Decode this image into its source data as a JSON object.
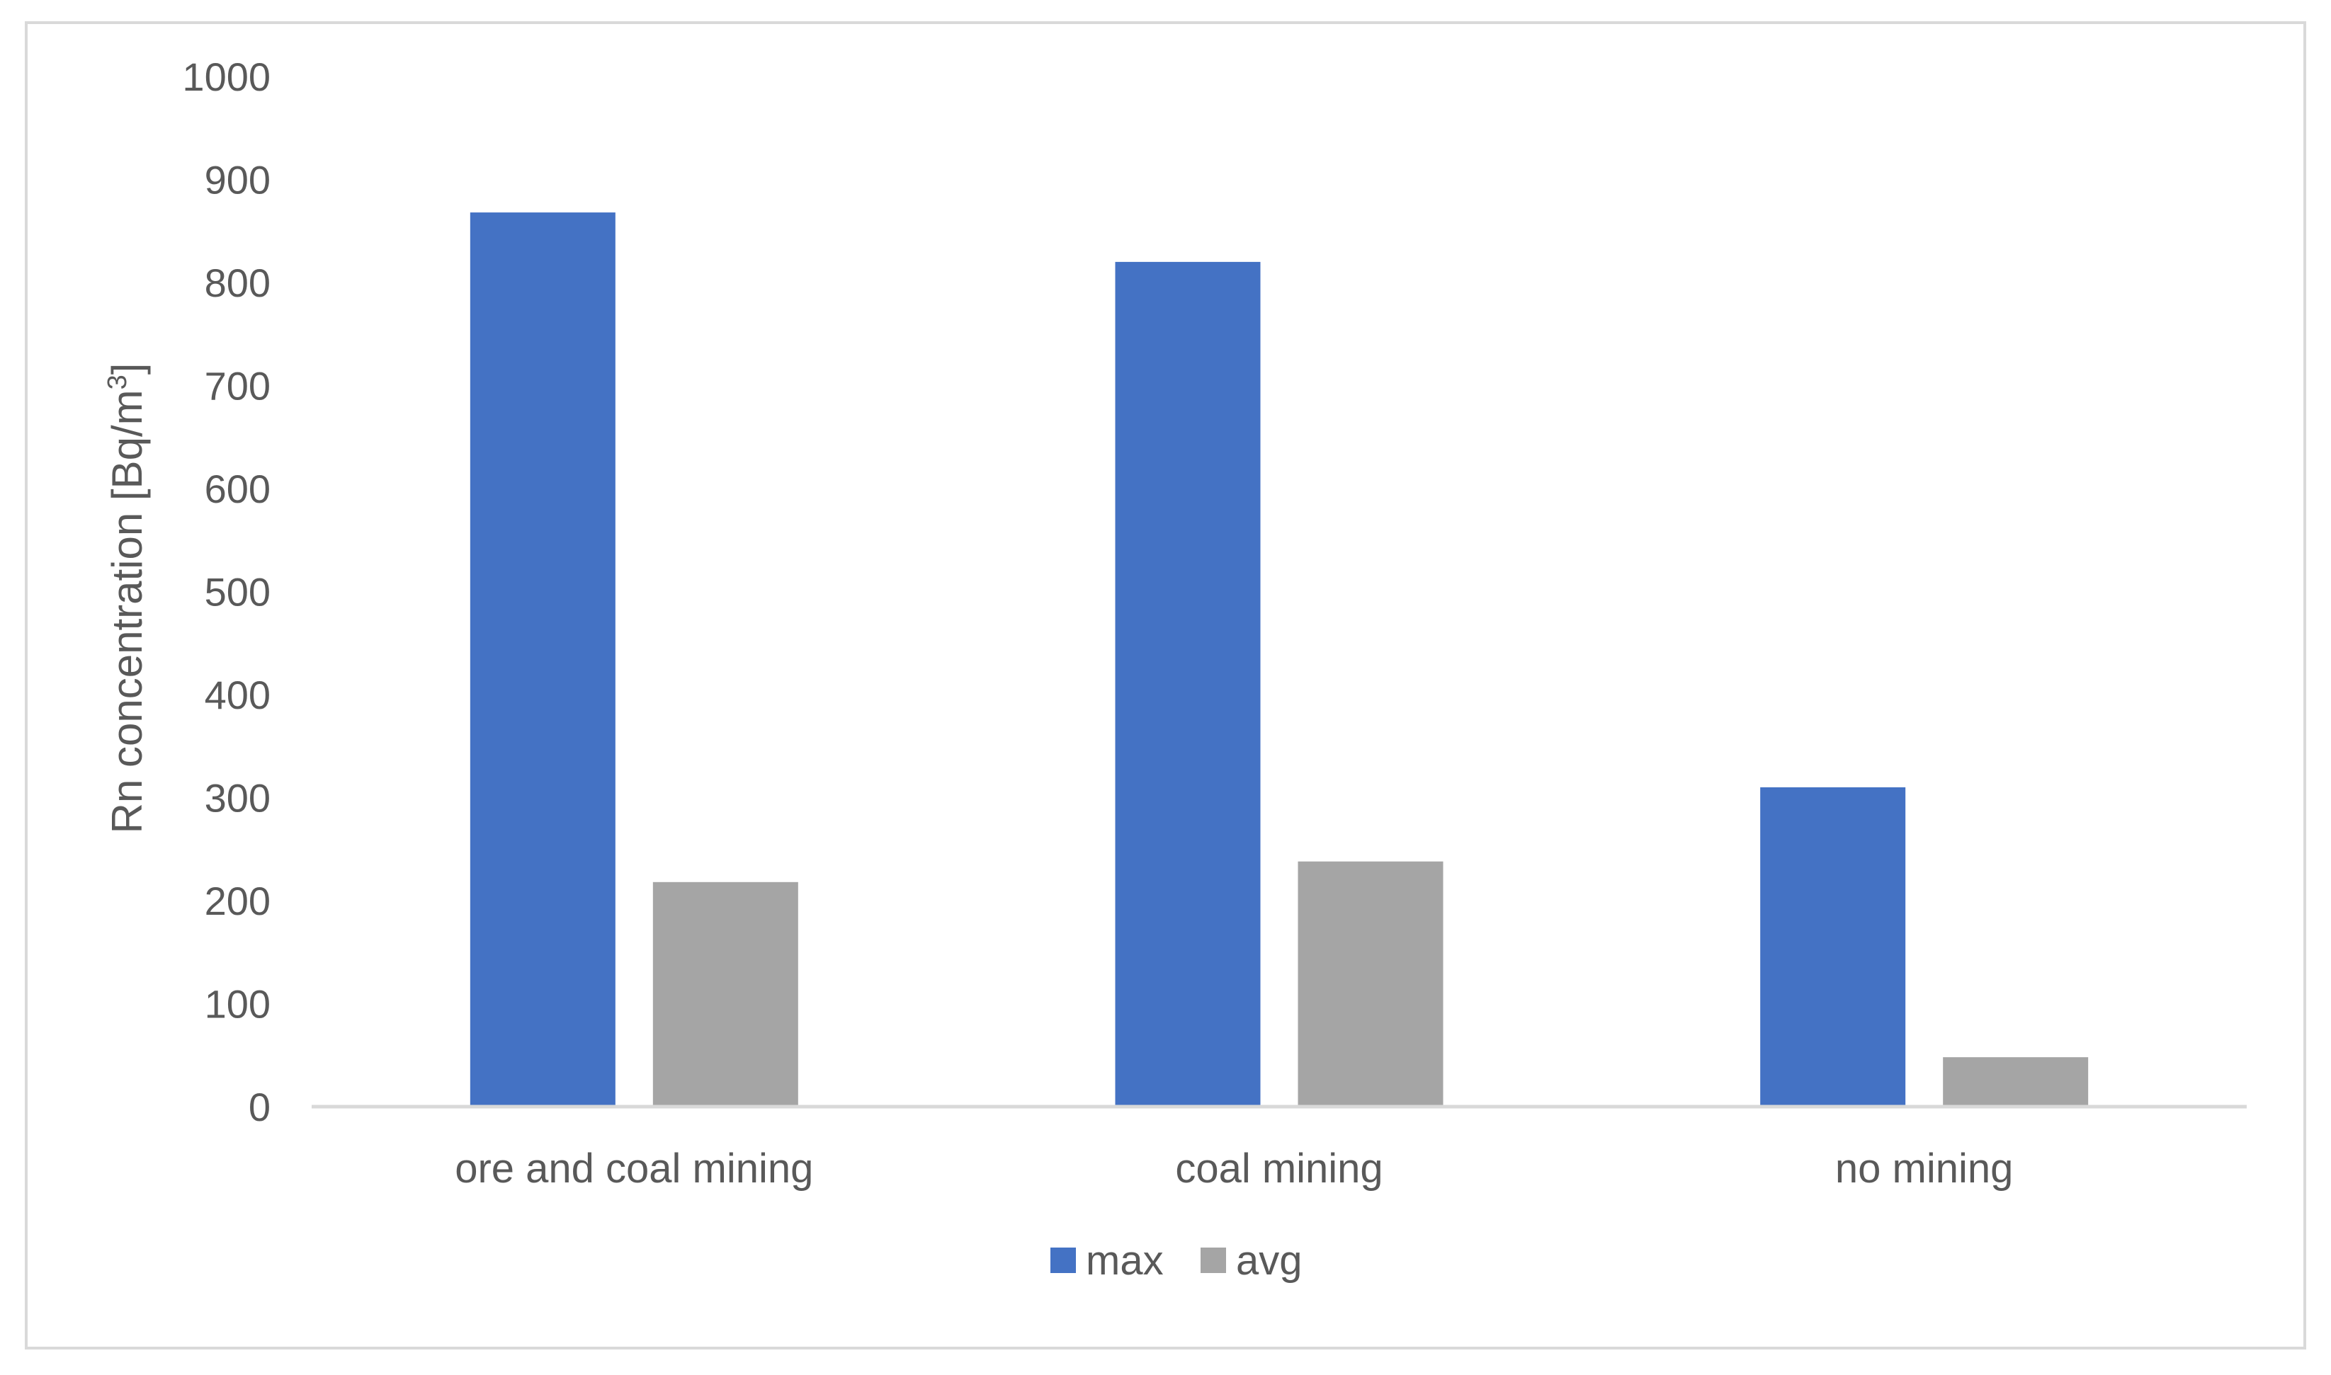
{
  "chart_data": {
    "type": "bar",
    "title": "",
    "xlabel": "",
    "ylabel": "Rn concentration [Bq/m",
    "ylabel_superscript": "3",
    "ylabel_suffix": "]",
    "categories": [
      "ore and coal mining",
      "coal mining",
      "no mining"
    ],
    "series": [
      {
        "name": "max",
        "color": "#4472c4",
        "values": [
          868,
          820,
          310
        ]
      },
      {
        "name": "avg",
        "color": "#a5a5a5",
        "values": [
          218,
          238,
          48
        ]
      }
    ],
    "ylim": [
      0,
      1000
    ],
    "yticks": [
      "0",
      "100",
      "200",
      "300",
      "400",
      "500",
      "600",
      "700",
      "800",
      "900",
      "1000"
    ],
    "grid": false,
    "legend_position": "bottom"
  }
}
